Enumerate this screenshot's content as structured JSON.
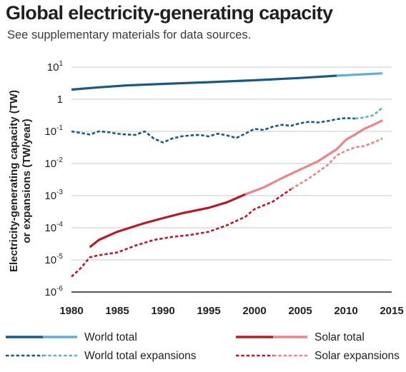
{
  "chart_data": {
    "type": "line",
    "title": "Global electricity-generating capacity",
    "subtitle": "See supplementary materials for data sources.",
    "ylabel_lines": [
      "Electricity-generating capacity (TW)",
      "or expansions (TW/year)"
    ],
    "xlabel": "",
    "y_scale": "log",
    "xlim": [
      1980,
      2015
    ],
    "ylim": [
      1e-06,
      10
    ],
    "x_ticks": [
      "1980",
      "1985",
      "1990",
      "1995",
      "2000",
      "2005",
      "2010",
      "2015"
    ],
    "y_ticks": [
      {
        "value": 10,
        "base": "10",
        "exp": "1"
      },
      {
        "value": 1,
        "base": "1",
        "exp": ""
      },
      {
        "value": 0.1,
        "base": "10",
        "exp": "-1"
      },
      {
        "value": 0.01,
        "base": "10",
        "exp": "-2"
      },
      {
        "value": 0.001,
        "base": "10",
        "exp": "-3"
      },
      {
        "value": 0.0001,
        "base": "10",
        "exp": "-4"
      },
      {
        "value": 1e-05,
        "base": "10",
        "exp": "-5"
      },
      {
        "value": 1e-06,
        "base": "10",
        "exp": "-6"
      }
    ],
    "grid": "horizontal",
    "legend_position": "bottom",
    "series": [
      {
        "name": "World total",
        "style": "solid",
        "color": "#1b5a80",
        "color_light": "#63aed1",
        "light_from": 2009,
        "x": [
          1980,
          1983,
          1986,
          1990,
          1995,
          2000,
          2005,
          2009,
          2010,
          2012,
          2014
        ],
        "y": [
          2.0,
          2.35,
          2.7,
          3.0,
          3.4,
          3.9,
          4.6,
          5.4,
          5.6,
          6.0,
          6.4
        ]
      },
      {
        "name": "Solar total",
        "style": "solid",
        "color": "#b01e2a",
        "color_light": "#e8868a",
        "light_from": 1999,
        "x": [
          1982,
          1983,
          1985,
          1988,
          1990,
          1992,
          1995,
          1997,
          1999,
          2001,
          2003,
          2005,
          2007,
          2009,
          2010,
          2011,
          2012,
          2013,
          2014
        ],
        "y": [
          2.5e-05,
          4.2e-05,
          7.5e-05,
          0.00014,
          0.0002,
          0.00028,
          0.00042,
          0.00062,
          0.0011,
          0.0018,
          0.0035,
          0.0065,
          0.012,
          0.028,
          0.055,
          0.08,
          0.12,
          0.16,
          0.22
        ]
      },
      {
        "name": "World total expansions",
        "style": "dashed",
        "color": "#1b5a80",
        "color_light": "#63aed1",
        "light_from": 2011,
        "x": [
          1980,
          1981,
          1982,
          1983,
          1984,
          1985,
          1986,
          1987,
          1988,
          1989,
          1990,
          1991,
          1992,
          1993,
          1994,
          1995,
          1996,
          1997,
          1998,
          1999,
          2000,
          2001,
          2002,
          2003,
          2004,
          2005,
          2006,
          2007,
          2008,
          2009,
          2010,
          2011,
          2012,
          2013,
          2014
        ],
        "y": [
          0.1,
          0.09,
          0.08,
          0.1,
          0.095,
          0.085,
          0.08,
          0.078,
          0.1,
          0.06,
          0.045,
          0.06,
          0.07,
          0.075,
          0.078,
          0.07,
          0.085,
          0.075,
          0.062,
          0.085,
          0.12,
          0.11,
          0.14,
          0.16,
          0.15,
          0.18,
          0.2,
          0.19,
          0.21,
          0.24,
          0.26,
          0.25,
          0.27,
          0.32,
          0.55
        ]
      },
      {
        "name": "Solar expansions",
        "style": "dashed",
        "color": "#b01e2a",
        "color_light": "#e8868a",
        "light_from": 2004,
        "x": [
          1980,
          1981,
          1982,
          1983,
          1985,
          1987,
          1989,
          1991,
          1993,
          1995,
          1997,
          1999,
          2000,
          2002,
          2004,
          2006,
          2008,
          2009,
          2010,
          2011,
          2012,
          2013,
          2014
        ],
        "y": [
          3e-06,
          5.5e-06,
          1.2e-05,
          1.4e-05,
          1.7e-05,
          2.8e-05,
          4.2e-05,
          5.2e-05,
          6e-05,
          7.5e-05,
          0.00012,
          0.00022,
          0.00038,
          0.00065,
          0.0016,
          0.0035,
          0.009,
          0.018,
          0.025,
          0.032,
          0.035,
          0.045,
          0.06
        ]
      }
    ],
    "legend": [
      {
        "label": "World total",
        "style": "solid",
        "color": "#1b5a80",
        "color_light": "#63aed1"
      },
      {
        "label": "Solar total",
        "style": "solid",
        "color": "#b01e2a",
        "color_light": "#e8868a"
      },
      {
        "label": "World total expansions",
        "style": "dashed",
        "color": "#1b5a80",
        "color_light": "#63aed1"
      },
      {
        "label": "Solar expansions",
        "style": "dashed",
        "color": "#b01e2a",
        "color_light": "#e8868a"
      }
    ]
  }
}
